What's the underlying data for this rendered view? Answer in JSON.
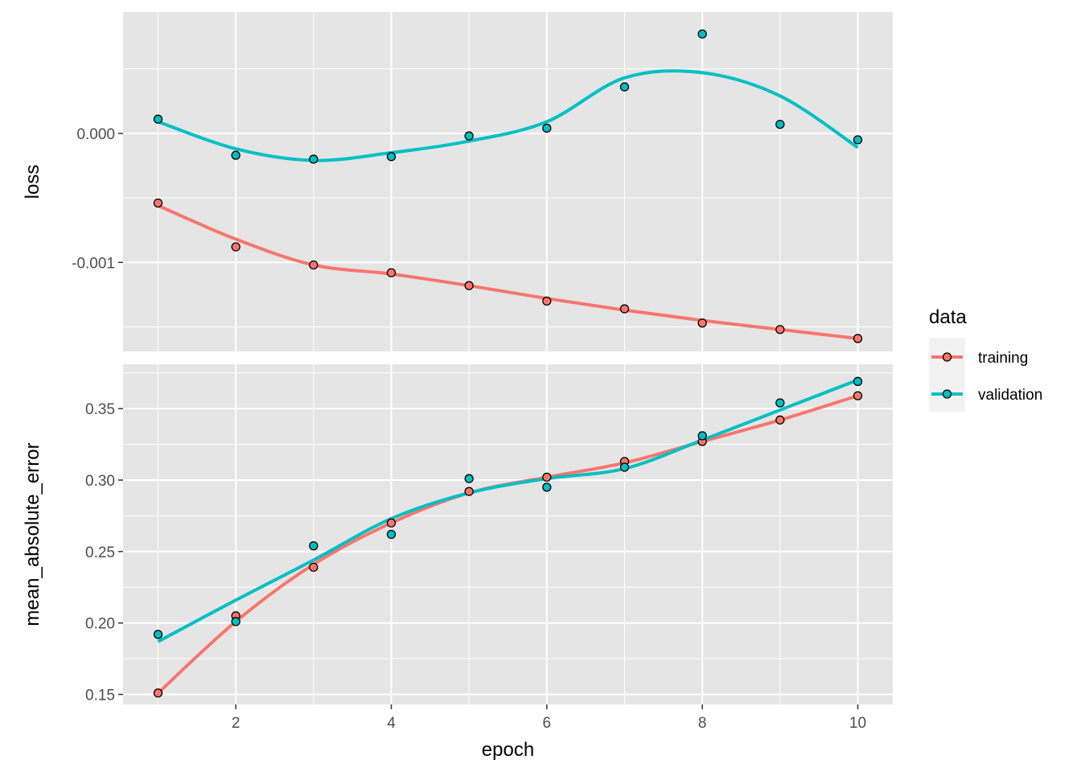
{
  "chart_data": {
    "type": "line",
    "facets": [
      {
        "ylabel": "loss",
        "ylim": [
          -0.00169,
          0.00094
        ],
        "yticks": [
          -0.001,
          0.0
        ],
        "ytick_labels": [
          "-0.001",
          "0.000"
        ],
        "series": [
          {
            "name": "training",
            "color": "#F8766D",
            "x": [
              1,
              2,
              3,
              4,
              5,
              6,
              7,
              8,
              9,
              10
            ],
            "values": [
              -0.00054,
              -0.00088,
              -0.00102,
              -0.00108,
              -0.00118,
              -0.0013,
              -0.00136,
              -0.00147,
              -0.00152,
              -0.00159
            ],
            "smooth": [
              -0.00056,
              -0.00082,
              -0.00102,
              -0.00109,
              -0.00118,
              -0.00128,
              -0.00137,
              -0.00145,
              -0.00152,
              -0.00159
            ]
          },
          {
            "name": "validation",
            "color": "#00BFC4",
            "x": [
              1,
              2,
              3,
              4,
              5,
              6,
              7,
              8,
              9,
              10
            ],
            "values": [
              0.00011,
              -0.00017,
              -0.0002,
              -0.00018,
              -2e-05,
              4e-05,
              0.00036,
              0.00077,
              7e-05,
              -5e-05
            ],
            "smooth": [
              9e-05,
              -0.00012,
              -0.00021,
              -0.00015,
              -6e-05,
              9e-05,
              0.00043,
              0.00047,
              0.00029,
              -0.00011
            ]
          }
        ]
      },
      {
        "ylabel": "mean_absolute_error",
        "ylim": [
          0.143,
          0.381
        ],
        "yticks": [
          0.15,
          0.2,
          0.25,
          0.3,
          0.35
        ],
        "ytick_labels": [
          "0.15",
          "0.20",
          "0.25",
          "0.30",
          "0.35"
        ],
        "series": [
          {
            "name": "training",
            "color": "#F8766D",
            "x": [
              1,
              2,
              3,
              4,
              5,
              6,
              7,
              8,
              9,
              10
            ],
            "values": [
              0.151,
              0.205,
              0.239,
              0.27,
              0.292,
              0.302,
              0.313,
              0.327,
              0.342,
              0.359
            ],
            "smooth": [
              0.151,
              0.201,
              0.241,
              0.27,
              0.291,
              0.302,
              0.312,
              0.327,
              0.342,
              0.359
            ]
          },
          {
            "name": "validation",
            "color": "#00BFC4",
            "x": [
              1,
              2,
              3,
              4,
              5,
              6,
              7,
              8,
              9,
              10
            ],
            "values": [
              0.192,
              0.201,
              0.254,
              0.262,
              0.301,
              0.295,
              0.309,
              0.331,
              0.354,
              0.369
            ],
            "smooth": [
              0.187,
              0.216,
              0.244,
              0.273,
              0.291,
              0.301,
              0.308,
              0.328,
              0.349,
              0.37
            ]
          }
        ]
      }
    ],
    "xlabel": "epoch",
    "xlim": [
      0.55,
      10.45
    ],
    "xticks": [
      2,
      4,
      6,
      8,
      10
    ],
    "xtick_labels": [
      "2",
      "4",
      "6",
      "8",
      "10"
    ],
    "legend": {
      "title": "data",
      "position": "right",
      "entries": [
        "training",
        "validation"
      ]
    },
    "grid": true
  }
}
